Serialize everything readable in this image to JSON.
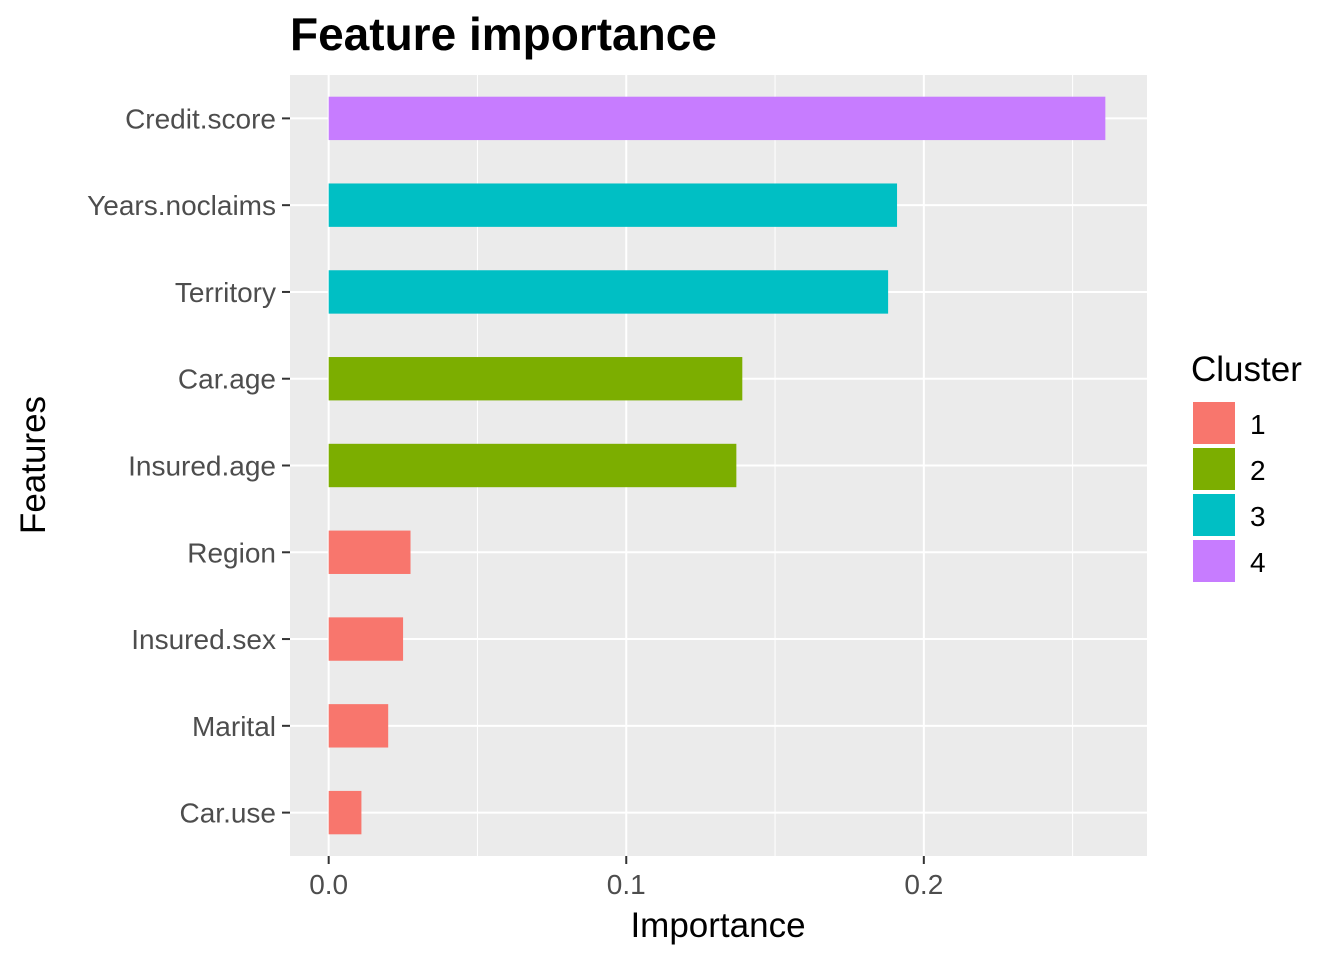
{
  "chart_data": {
    "type": "bar",
    "orientation": "horizontal",
    "title": "Feature importance",
    "xlabel": "Importance",
    "ylabel": "Features",
    "xlim": [
      -0.013,
      0.275
    ],
    "x_ticks": [
      0.0,
      0.1,
      0.2
    ],
    "x_tick_labels": [
      "0.0",
      "0.1",
      "0.2"
    ],
    "grid": true,
    "background": "#ebebeb",
    "legend": {
      "title": "Cluster",
      "placement": "right",
      "entries": [
        {
          "label": "1",
          "color": "#f8766d"
        },
        {
          "label": "2",
          "color": "#7cae00"
        },
        {
          "label": "3",
          "color": "#00bfc4"
        },
        {
          "label": "4",
          "color": "#c77cff"
        }
      ]
    },
    "bars": [
      {
        "feature": "Credit.score",
        "value": 0.261,
        "cluster": "4"
      },
      {
        "feature": "Years.noclaims",
        "value": 0.191,
        "cluster": "3"
      },
      {
        "feature": "Territory",
        "value": 0.188,
        "cluster": "3"
      },
      {
        "feature": "Car.age",
        "value": 0.139,
        "cluster": "2"
      },
      {
        "feature": "Insured.age",
        "value": 0.137,
        "cluster": "2"
      },
      {
        "feature": "Region",
        "value": 0.0275,
        "cluster": "1"
      },
      {
        "feature": "Insured.sex",
        "value": 0.025,
        "cluster": "1"
      },
      {
        "feature": "Marital",
        "value": 0.02,
        "cluster": "1"
      },
      {
        "feature": "Car.use",
        "value": 0.011,
        "cluster": "1"
      }
    ]
  }
}
